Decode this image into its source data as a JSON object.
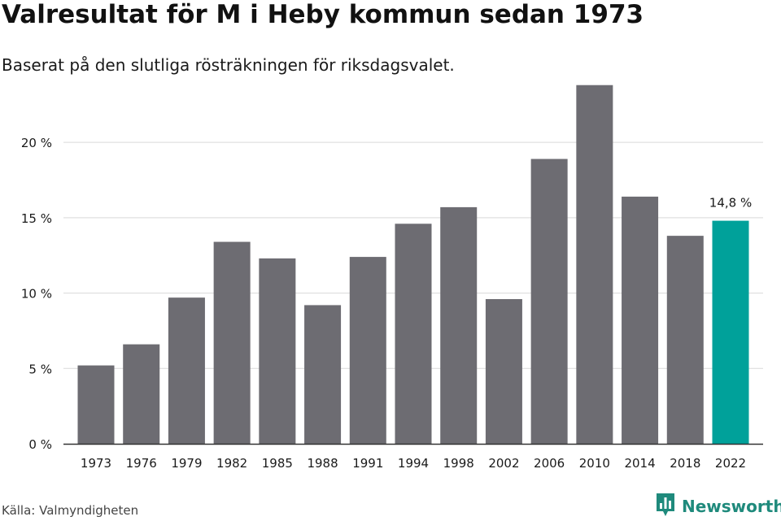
{
  "title": "Valresultat för M i Heby kommun sedan 1973",
  "subtitle": "Baserat på den slutliga rösträkningen för riksdagsvalet.",
  "source": "Källa: Valmyndigheten",
  "brand": {
    "name": "Newsworthy",
    "logo_icon": "newsworthy-bar-logo-icon",
    "color": "#1f8a7c"
  },
  "colors": {
    "bar": "#6d6c72",
    "highlight": "#00a19a",
    "grid": "#d9d9d9",
    "axis": "#333333",
    "text": "#1a1a1a"
  },
  "chart_data": {
    "type": "bar",
    "categories": [
      "1973",
      "1976",
      "1979",
      "1982",
      "1985",
      "1988",
      "1991",
      "1994",
      "1998",
      "2002",
      "2006",
      "2010",
      "2014",
      "2018",
      "2022"
    ],
    "values": [
      5.2,
      6.6,
      9.7,
      13.4,
      12.3,
      9.2,
      12.4,
      14.6,
      15.7,
      9.6,
      18.9,
      23.8,
      16.4,
      13.8,
      14.8
    ],
    "highlight_index": 14,
    "highlight_label": "14,8 %",
    "yticks": [
      0,
      5,
      10,
      15,
      20
    ],
    "ytick_labels": [
      "0 %",
      "5 %",
      "10 %",
      "15 %",
      "20 %"
    ],
    "ylim": [
      0,
      24
    ],
    "xlabel": "",
    "ylabel": "",
    "grid": true,
    "legend": "none"
  }
}
